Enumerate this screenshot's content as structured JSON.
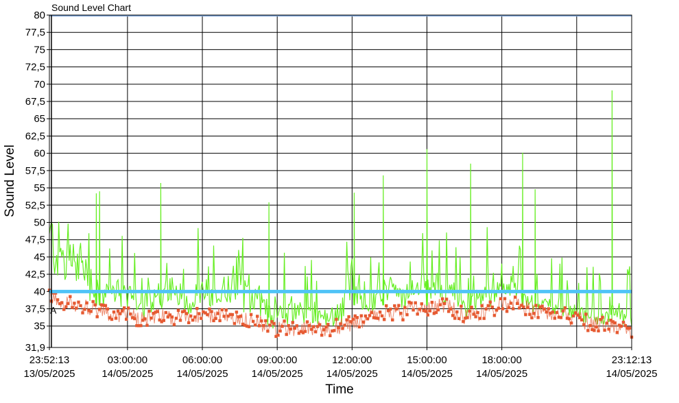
{
  "chart_data": {
    "type": "line",
    "title": "Sound Level Chart",
    "xlabel": "Time",
    "ylabel": "Sound Level",
    "ylim": [
      31.9,
      80
    ],
    "xlim": [
      "2025-05-13 23:52:13",
      "2025-05-14 23:12:13"
    ],
    "y_ticks": [
      "31,9",
      "35",
      "37,5",
      "40",
      "42,5",
      "45",
      "47,5",
      "50",
      "52,5",
      "55",
      "57,5",
      "60",
      "62,5",
      "65",
      "67,5",
      "70",
      "72,5",
      "75",
      "77,5",
      "80"
    ],
    "x_ticks": [
      {
        "time": "23:52:13",
        "date": "13/05/2025"
      },
      {
        "time": "03:00:00",
        "date": "14/05/2025"
      },
      {
        "time": "06:00:00",
        "date": "14/05/2025"
      },
      {
        "time": "09:00:00",
        "date": "14/05/2025"
      },
      {
        "time": "12:00:00",
        "date": "14/05/2025"
      },
      {
        "time": "15:00:00",
        "date": "14/05/2025"
      },
      {
        "time": "18:00:00",
        "date": "14/05/2025"
      },
      {
        "time": "23:12:13",
        "date": "14/05/2025"
      }
    ],
    "grid": true,
    "threshold": {
      "label": "A",
      "value": 40,
      "color": "#4FC3F7"
    },
    "series": [
      {
        "color": "#66EE22",
        "x": [
          "00:00",
          "00:30",
          "01:00",
          "01:30",
          "02:00",
          "02:30",
          "03:00",
          "03:30",
          "04:00",
          "04:30",
          "05:00",
          "05:30",
          "06:00",
          "06:30",
          "07:00",
          "07:30",
          "08:00",
          "08:30",
          "09:00",
          "09:30",
          "10:00",
          "10:30",
          "11:00",
          "11:30",
          "12:00",
          "12:30",
          "13:00",
          "13:30",
          "14:00",
          "14:30",
          "15:00",
          "15:30",
          "16:00",
          "16:30",
          "17:00",
          "17:30",
          "18:00",
          "18:30",
          "19:00",
          "19:30",
          "20:00",
          "20:30",
          "21:00",
          "21:30",
          "22:00",
          "22:30",
          "23:00"
        ],
        "values": [
          48,
          45,
          44,
          42,
          40,
          39,
          40,
          38,
          39,
          42,
          39,
          38,
          40,
          39,
          41,
          42,
          40,
          38,
          37,
          38,
          37,
          37,
          36,
          37,
          42,
          38,
          40,
          41,
          39,
          40,
          44,
          41,
          40,
          38,
          39,
          40,
          40,
          42,
          39,
          38,
          39,
          37,
          37,
          36,
          36,
          37,
          36
        ]
      },
      {
        "color": "#E65A32",
        "x": [
          "00:00",
          "00:30",
          "01:00",
          "01:30",
          "02:00",
          "02:30",
          "03:00",
          "03:30",
          "04:00",
          "04:30",
          "05:00",
          "05:30",
          "06:00",
          "06:30",
          "07:00",
          "07:30",
          "08:00",
          "08:30",
          "09:00",
          "09:30",
          "10:00",
          "10:30",
          "11:00",
          "11:30",
          "12:00",
          "12:30",
          "13:00",
          "13:30",
          "14:00",
          "14:30",
          "15:00",
          "15:30",
          "16:00",
          "16:30",
          "17:00",
          "17:30",
          "18:00",
          "18:30",
          "19:00",
          "19:30",
          "20:00",
          "20:30",
          "21:00",
          "21:30",
          "22:00",
          "22:30",
          "23:00"
        ],
        "values": [
          39,
          38.5,
          38,
          37.5,
          37,
          36.5,
          36.5,
          36,
          36.2,
          36.5,
          36.3,
          36.2,
          36.5,
          36.4,
          36.5,
          36.3,
          35.8,
          35.2,
          34.5,
          34.8,
          34.6,
          34.7,
          34.5,
          35,
          35.3,
          36,
          36.5,
          37,
          37,
          37.5,
          37.5,
          38,
          37.5,
          36.5,
          36.8,
          37.5,
          38,
          38.5,
          37.5,
          37,
          36.8,
          36.5,
          36,
          35.5,
          35.2,
          35,
          34.5
        ]
      }
    ],
    "spikes": [
      {
        "time": "01:45",
        "value": 54.2
      },
      {
        "time": "01:53",
        "value": 54.5
      },
      {
        "time": "04:20",
        "value": 55.7
      },
      {
        "time": "08:40",
        "value": 52.9
      },
      {
        "time": "12:05",
        "value": 54.3
      },
      {
        "time": "13:15",
        "value": 56.8
      },
      {
        "time": "15:00",
        "value": 60.6
      },
      {
        "time": "16:45",
        "value": 58.5
      },
      {
        "time": "18:50",
        "value": 60.1
      },
      {
        "time": "19:20",
        "value": 54.8
      },
      {
        "time": "22:25",
        "value": 69.1
      }
    ]
  }
}
